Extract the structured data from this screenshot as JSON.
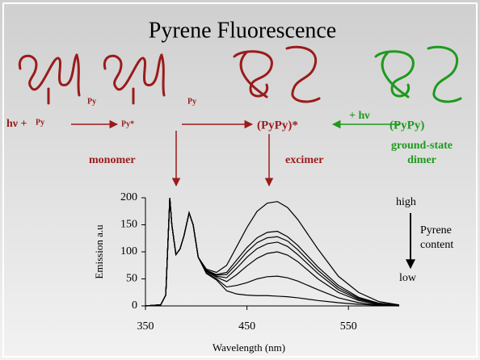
{
  "diagram": {
    "title": "Pyrene Fluorescence",
    "hv_plus": "hν +",
    "py1": "Py",
    "py2": "Py",
    "py3": "Py",
    "py_star": "Py*",
    "excimer_pair": "(PyPy)*",
    "plus_hv": "+ hν",
    "dimer_pair": "(PyPy)",
    "ground_state": "ground-state",
    "dimer": "dimer",
    "monomer": "monomer",
    "excimer": "excimer",
    "high": "high",
    "pyrene": "Pyrene",
    "content": "content",
    "low": "low"
  },
  "chart_data": {
    "type": "line",
    "y_label": "Emission a.u",
    "x_label": "Wavelength (nm)",
    "color": "#000000",
    "x": [
      350,
      365,
      370,
      374,
      376,
      380,
      384,
      388,
      393,
      397,
      402,
      410,
      420,
      430,
      440,
      450,
      460,
      470,
      480,
      490,
      500,
      520,
      540,
      560,
      580,
      600
    ],
    "series": [
      {
        "values": [
          0,
          2,
          20,
          200,
          150,
          95,
          105,
          130,
          172,
          150,
          90,
          68,
          62,
          75,
          110,
          145,
          175,
          190,
          193,
          182,
          160,
          105,
          55,
          25,
          8,
          2
        ]
      },
      {
        "values": [
          0,
          2,
          20,
          200,
          150,
          95,
          105,
          130,
          172,
          150,
          90,
          66,
          58,
          62,
          85,
          108,
          126,
          136,
          138,
          128,
          112,
          72,
          38,
          16,
          5,
          1
        ]
      },
      {
        "values": [
          0,
          2,
          20,
          200,
          150,
          95,
          105,
          130,
          172,
          150,
          90,
          66,
          57,
          58,
          78,
          100,
          117,
          126,
          128,
          120,
          104,
          66,
          34,
          14,
          5,
          1
        ]
      },
      {
        "values": [
          0,
          2,
          20,
          200,
          150,
          95,
          105,
          130,
          172,
          150,
          90,
          65,
          55,
          52,
          70,
          90,
          106,
          115,
          118,
          110,
          95,
          60,
          30,
          12,
          4,
          1
        ]
      },
      {
        "values": [
          0,
          2,
          20,
          200,
          150,
          95,
          105,
          130,
          172,
          150,
          90,
          64,
          53,
          45,
          58,
          74,
          88,
          97,
          100,
          94,
          82,
          50,
          25,
          10,
          3,
          1
        ]
      },
      {
        "values": [
          0,
          2,
          20,
          200,
          150,
          95,
          105,
          130,
          172,
          150,
          90,
          62,
          50,
          35,
          38,
          43,
          50,
          54,
          55,
          52,
          46,
          30,
          15,
          6,
          2,
          0
        ]
      },
      {
        "values": [
          0,
          2,
          20,
          200,
          150,
          95,
          105,
          130,
          172,
          150,
          90,
          60,
          48,
          28,
          22,
          20,
          19,
          19,
          18,
          17,
          15,
          10,
          6,
          3,
          1,
          0
        ]
      }
    ],
    "xlim": [
      350,
      600
    ],
    "xticks": [
      350,
      450,
      550
    ],
    "ylim": [
      0,
      200
    ],
    "yticks": [
      0,
      50,
      100,
      150,
      200
    ]
  }
}
